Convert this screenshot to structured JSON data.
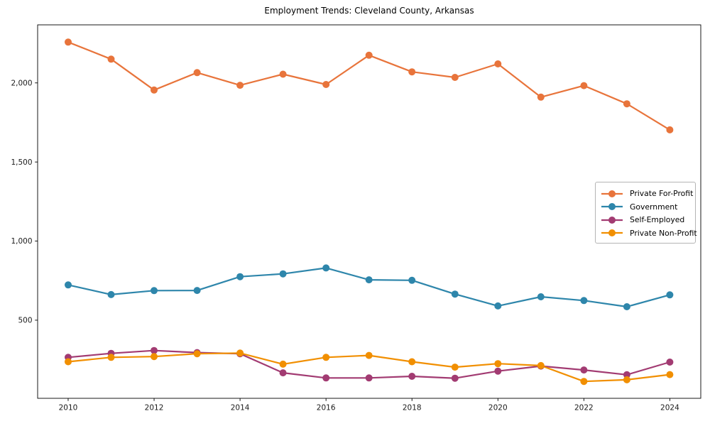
{
  "page": {
    "background": "#ffffff"
  },
  "chart_data": {
    "type": "line",
    "title": "Employment Trends: Cleveland County, Arkansas",
    "xlabel": "",
    "ylabel": "",
    "grid": false,
    "marker": "circle",
    "legend_position": "center-right",
    "x": [
      2010,
      2011,
      2012,
      2013,
      2014,
      2015,
      2016,
      2017,
      2018,
      2019,
      2020,
      2021,
      2022,
      2023,
      2024
    ],
    "series": [
      {
        "id": "private-for-profit",
        "name": "Private For-Profit",
        "color": "#E8743B",
        "values": [
          2258,
          2150,
          1955,
          2065,
          1985,
          2055,
          1990,
          2175,
          2070,
          2035,
          2120,
          1910,
          1983,
          1868,
          1703
        ]
      },
      {
        "id": "government",
        "name": "Government",
        "color": "#2E86AB",
        "values": [
          723,
          662,
          687,
          688,
          775,
          793,
          830,
          755,
          752,
          665,
          590,
          648,
          624,
          585,
          660
        ]
      },
      {
        "id": "self-employed",
        "name": "Self-Employed",
        "color": "#A23B72",
        "values": [
          265,
          290,
          308,
          295,
          288,
          167,
          135,
          135,
          145,
          133,
          178,
          210,
          185,
          155,
          235
        ]
      },
      {
        "id": "private-non-profit",
        "name": "Private Non-Profit",
        "color": "#F18F01",
        "values": [
          237,
          265,
          270,
          288,
          292,
          222,
          265,
          277,
          237,
          203,
          225,
          213,
          113,
          123,
          156
        ]
      }
    ],
    "x_ticks": [
      {
        "value": 2010,
        "label": "2010"
      },
      {
        "value": 2012,
        "label": "2012"
      },
      {
        "value": 2014,
        "label": "2014"
      },
      {
        "value": 2016,
        "label": "2016"
      },
      {
        "value": 2018,
        "label": "2018"
      },
      {
        "value": 2020,
        "label": "2020"
      },
      {
        "value": 2022,
        "label": "2022"
      },
      {
        "value": 2024,
        "label": "2024"
      }
    ],
    "y_ticks": [
      {
        "value": 500,
        "label": "500"
      },
      {
        "value": 1000,
        "label": "1,000"
      },
      {
        "value": 1500,
        "label": "1,500"
      },
      {
        "value": 2000,
        "label": "2,000"
      }
    ],
    "xlim": [
      2009.29,
      2024.72
    ],
    "ylim": [
      6,
      2367
    ]
  }
}
